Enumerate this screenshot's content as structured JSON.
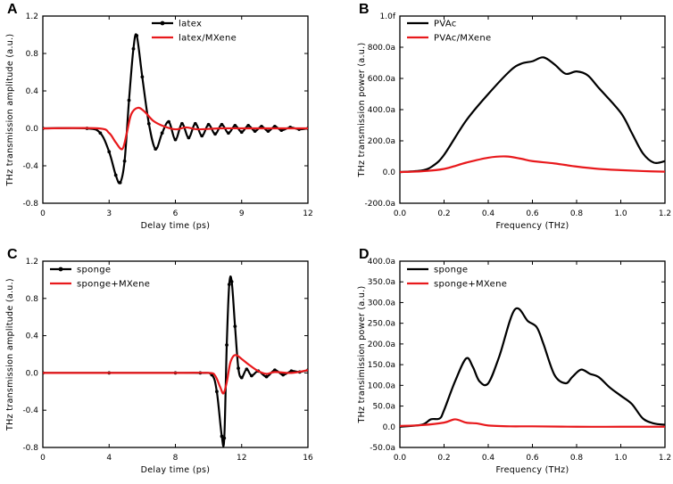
{
  "colors": {
    "black_series": "#000000",
    "red_series": "#e8191c"
  },
  "chart_data": [
    {
      "panel": "A",
      "type": "line",
      "xlabel": "Delay time (ps)",
      "ylabel": "THz transmission amplitude (a.u.)",
      "xlim": [
        0,
        12
      ],
      "ylim": [
        -0.8,
        1.2
      ],
      "xticks": [
        0,
        3,
        6,
        9,
        12
      ],
      "yticks": [
        -0.8,
        -0.4,
        0.0,
        0.4,
        0.8,
        1.2
      ],
      "xtick_labels": [
        "0",
        "3",
        "6",
        "9",
        "12"
      ],
      "ytick_labels": [
        "-0.8",
        "-0.4",
        "0.0",
        "0.4",
        "0.8",
        "1.2"
      ],
      "legend_position": "top-right",
      "series": [
        {
          "name": "latex",
          "color": "#000000",
          "markers": true,
          "x": [
            0,
            2.0,
            2.6,
            3.0,
            3.3,
            3.5,
            3.7,
            3.9,
            4.1,
            4.25,
            4.5,
            4.8,
            5.1,
            5.4,
            5.7,
            6.0,
            6.3,
            6.6,
            6.9,
            7.2,
            7.5,
            7.8,
            8.1,
            8.4,
            8.7,
            9.0,
            9.3,
            9.6,
            9.9,
            10.2,
            10.5,
            10.8,
            11.2,
            11.6,
            12.0
          ],
          "y": [
            0,
            0,
            -0.05,
            -0.25,
            -0.5,
            -0.58,
            -0.35,
            0.3,
            0.85,
            0.99,
            0.55,
            0.05,
            -0.22,
            -0.05,
            0.07,
            -0.12,
            0.05,
            -0.1,
            0.05,
            -0.08,
            0.04,
            -0.06,
            0.04,
            -0.05,
            0.03,
            -0.04,
            0.03,
            -0.03,
            0.02,
            -0.03,
            0.02,
            -0.02,
            0.01,
            -0.01,
            0
          ]
        },
        {
          "name": "latex/MXene",
          "color": "#e8191c",
          "markers": false,
          "x": [
            0,
            2.5,
            3.0,
            3.3,
            3.6,
            3.8,
            4.0,
            4.3,
            4.6,
            5.0,
            5.5,
            6.0,
            6.5,
            7.0,
            8.0,
            9.0,
            10.0,
            11.0,
            12.0
          ],
          "y": [
            0,
            0,
            -0.05,
            -0.15,
            -0.22,
            -0.05,
            0.15,
            0.22,
            0.18,
            0.08,
            0.02,
            -0.01,
            0.01,
            -0.01,
            0,
            0,
            0,
            0,
            0
          ]
        }
      ]
    },
    {
      "panel": "B",
      "type": "line",
      "xlabel": "Frequency (THz)",
      "ylabel": "THz transmission power (a.u.)",
      "xlim": [
        0,
        1.2
      ],
      "ylim": [
        -200,
        1000
      ],
      "xticks": [
        0,
        0.2,
        0.4,
        0.6,
        0.8,
        1.0,
        1.2
      ],
      "yticks": [
        -200,
        0,
        200,
        400,
        600,
        800,
        1000
      ],
      "xtick_labels": [
        "0.0",
        "0.2",
        "0.4",
        "0.6",
        "0.8",
        "1.0",
        "1.2"
      ],
      "ytick_labels": [
        "-200.0a",
        "0.0",
        "200.0a",
        "400.0a",
        "600.0a",
        "800.0a",
        "1.0f"
      ],
      "legend_position": "top-left",
      "series": [
        {
          "name": "PVAc",
          "color": "#000000",
          "markers": false,
          "x": [
            0,
            0.1,
            0.15,
            0.2,
            0.3,
            0.4,
            0.5,
            0.55,
            0.6,
            0.65,
            0.7,
            0.75,
            0.8,
            0.85,
            0.9,
            1.0,
            1.05,
            1.1,
            1.15,
            1.2
          ],
          "y": [
            0,
            10,
            40,
            110,
            330,
            500,
            650,
            695,
            710,
            735,
            690,
            630,
            645,
            620,
            540,
            380,
            250,
            120,
            60,
            70
          ]
        },
        {
          "name": "PVAc/MXene",
          "color": "#e8191c",
          "markers": false,
          "x": [
            0,
            0.1,
            0.2,
            0.3,
            0.4,
            0.48,
            0.55,
            0.6,
            0.7,
            0.8,
            0.9,
            1.0,
            1.1,
            1.2
          ],
          "y": [
            0,
            5,
            20,
            60,
            92,
            100,
            85,
            70,
            55,
            35,
            20,
            12,
            6,
            2
          ]
        }
      ]
    },
    {
      "panel": "C",
      "type": "line",
      "xlabel": "Delay time (ps)",
      "ylabel": "THz transmission amplitude (a.u.)",
      "xlim": [
        0,
        16
      ],
      "ylim": [
        -0.8,
        1.2
      ],
      "xticks": [
        0,
        4,
        8,
        12,
        16
      ],
      "yticks": [
        -0.8,
        -0.4,
        0.0,
        0.4,
        0.8,
        1.2
      ],
      "xtick_labels": [
        "0",
        "4",
        "8",
        "12",
        "16"
      ],
      "ytick_labels": [
        "-0.8",
        "-0.4",
        "0.0",
        "0.4",
        "0.8",
        "1.2"
      ],
      "legend_position": "top-left",
      "series": [
        {
          "name": "sponge",
          "color": "#000000",
          "markers": true,
          "x": [
            0,
            4,
            8,
            9.5,
            10.2,
            10.5,
            10.8,
            10.95,
            11.1,
            11.25,
            11.4,
            11.6,
            11.8,
            12.0,
            12.3,
            12.6,
            13.0,
            13.5,
            14.0,
            14.5,
            15.0,
            15.5,
            16.0
          ],
          "y": [
            0,
            0,
            0,
            0,
            -0.02,
            -0.2,
            -0.68,
            -0.7,
            0.3,
            0.95,
            0.98,
            0.5,
            0.05,
            -0.05,
            0.04,
            -0.03,
            0.02,
            -0.04,
            0.03,
            -0.02,
            0.02,
            0.01,
            0.03
          ]
        },
        {
          "name": "sponge+MXene",
          "color": "#e8191c",
          "markers": false,
          "x": [
            0,
            4,
            8,
            10.0,
            10.4,
            10.7,
            10.9,
            11.1,
            11.3,
            11.5,
            11.7,
            12.0,
            12.5,
            13.0,
            13.5,
            14.0,
            15.0,
            16.0
          ],
          "y": [
            0,
            0,
            0,
            0,
            -0.03,
            -0.15,
            -0.22,
            -0.1,
            0.1,
            0.18,
            0.19,
            0.15,
            0.08,
            0.02,
            -0.01,
            0.01,
            0,
            0.03
          ]
        }
      ]
    },
    {
      "panel": "D",
      "type": "line",
      "xlabel": "Frequency (THz)",
      "ylabel": "THz transimission power (a.u.)",
      "xlim": [
        0,
        1.2
      ],
      "ylim": [
        -50,
        400
      ],
      "xticks": [
        0,
        0.2,
        0.4,
        0.6,
        0.8,
        1.0,
        1.2
      ],
      "yticks": [
        -50,
        0,
        50,
        100,
        150,
        200,
        250,
        300,
        350,
        400
      ],
      "xtick_labels": [
        "0.0",
        "0.2",
        "0.4",
        "0.6",
        "0.8",
        "1.0",
        "1.2"
      ],
      "ytick_labels": [
        "-50.0a",
        "0.0",
        "50.0a",
        "100.0a",
        "150.0a",
        "200.0a",
        "250.0a",
        "300.0a",
        "350.0a",
        "400.0a"
      ],
      "legend_position": "top-left",
      "series": [
        {
          "name": "sponge",
          "color": "#000000",
          "markers": false,
          "x": [
            0,
            0.1,
            0.14,
            0.18,
            0.2,
            0.25,
            0.3,
            0.33,
            0.36,
            0.4,
            0.45,
            0.52,
            0.58,
            0.62,
            0.65,
            0.7,
            0.75,
            0.78,
            0.82,
            0.86,
            0.9,
            0.95,
            1.0,
            1.05,
            1.1,
            1.15,
            1.2
          ],
          "y": [
            0,
            5,
            18,
            20,
            40,
            110,
            165,
            145,
            110,
            105,
            170,
            283,
            255,
            240,
            200,
            125,
            105,
            120,
            138,
            128,
            120,
            95,
            75,
            55,
            20,
            8,
            5
          ]
        },
        {
          "name": "sponge+MXene",
          "color": "#e8191c",
          "markers": false,
          "x": [
            0,
            0.1,
            0.2,
            0.25,
            0.3,
            0.35,
            0.4,
            0.5,
            0.6,
            0.8,
            1.0,
            1.2
          ],
          "y": [
            2,
            4,
            10,
            18,
            10,
            8,
            3,
            1,
            1,
            0,
            0,
            0
          ]
        }
      ]
    }
  ]
}
